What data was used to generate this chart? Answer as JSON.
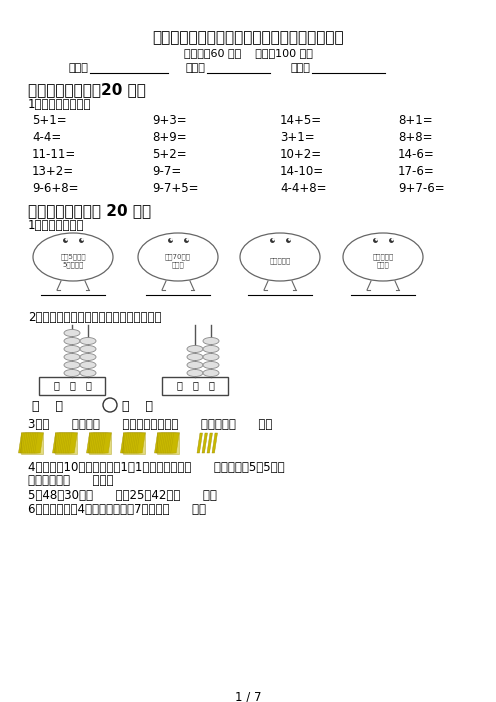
{
  "title": "最新北师大版一年级数学上册期末考试卷含答案",
  "subtitle": "（时间：60 分钟    分数：100 分）",
  "info_label1": "班级：",
  "info_label2": "姓名：",
  "info_label3": "分数：",
  "section1_title": "一、计算小能手（20 分）",
  "section1_sub": "1、直接写出得数。",
  "calc_rows": [
    [
      "5+1=",
      "9+3=",
      "14+5=",
      "8+1="
    ],
    [
      "4-4=",
      "8+9=",
      "3+1=",
      "8+8="
    ],
    [
      "11-11=",
      "5+2=",
      "10+2=",
      "14-6="
    ],
    [
      "13+2=",
      "9-7=",
      "14-10=",
      "17-6="
    ],
    [
      "9-6+8=",
      "9-7+5=",
      "4-4+8=",
      "9+7-6="
    ]
  ],
  "section2_title": "二、填空题。（共 20 分）",
  "q1_text": "1、猜猜我是谁？",
  "q1_chars": [
    "我有5个十和\n5个一组成",
    "我是70前面\n一个数",
    "我是一个百",
    "我是最大的\n两位数"
  ],
  "q2_text": "2、根据计数器先写出得数，再比较大小。",
  "q3_text": "3、（      ）个十（      ）个一合起来是（      ），读作（      ）。",
  "q4_text": "4、小明有10张卡片，如果1张1张地数需要数（      ）次；如果5张5张地",
  "q4_text2": "数，需要数（      ）次。",
  "q5_text": "5、48比30多（      ），25比42少（      ）。",
  "q6_text": "6、一个加数是4，另一个加数是7，和是（      ）。",
  "page_text": "1 / 7",
  "bg_color": "#ffffff"
}
